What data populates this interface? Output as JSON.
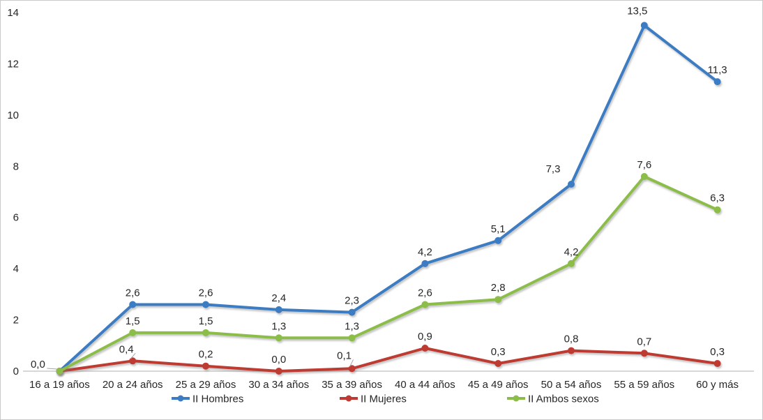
{
  "chart_data": {
    "type": "line",
    "title": "",
    "xlabel": "",
    "ylabel": "",
    "grid": false,
    "categories": [
      "16 a 19 años",
      "20 a 24 años",
      "25 a 29 años",
      "30 a 34 años",
      "35 a 39 años",
      "40 a 44 años",
      "45 a 49 años",
      "50 a 54 años",
      "55 a 59 años",
      "60 y más"
    ],
    "series": [
      {
        "name": "II Hombres",
        "color": "#3b7cc3",
        "values": [
          0.0,
          2.6,
          2.6,
          2.4,
          2.3,
          4.2,
          5.1,
          7.3,
          13.5,
          11.3
        ],
        "labels": [
          "0,0",
          "2,6",
          "2,6",
          "2,4",
          "2,3",
          "4,2",
          "5,1",
          "7,3",
          "13,5",
          "11,3"
        ]
      },
      {
        "name": "II Mujeres",
        "color": "#be3a33",
        "values": [
          0.0,
          0.4,
          0.2,
          0.0,
          0.1,
          0.9,
          0.3,
          0.8,
          0.7,
          0.3
        ],
        "labels": [
          "",
          "0,4",
          "0,2",
          "0,0",
          "0,1",
          "0,9",
          "0,3",
          "0,8",
          "0,7",
          "0,3"
        ]
      },
      {
        "name": "II Ambos sexos",
        "color": "#8cbd4a",
        "values": [
          0.0,
          1.5,
          1.5,
          1.3,
          1.3,
          2.6,
          2.8,
          4.2,
          7.6,
          6.3
        ],
        "labels": [
          "",
          "1,5",
          "1,5",
          "1,3",
          "1,3",
          "2,6",
          "2,8",
          "4,2",
          "7,6",
          "6,3"
        ]
      }
    ],
    "y_axis": {
      "min": 0,
      "max": 14,
      "step": 2,
      "ticks": [
        "0",
        "2",
        "4",
        "6",
        "8",
        "10",
        "12",
        "14"
      ]
    },
    "legend": {
      "position": "bottom",
      "items": [
        "II Hombres",
        "II Mujeres",
        "II Ambos sexos"
      ]
    },
    "label_offsets": {
      "0,0": [
        -31,
        -10
      ],
      "0,7": [
        -26,
        -22
      ],
      "0,8": [
        -10,
        -21
      ],
      "1,1": [
        -9,
        -17
      ],
      "1,4": [
        -11,
        -19
      ]
    },
    "callouts": [
      "0,0",
      "1,1",
      "1,4"
    ],
    "colors": {
      "text": "#262626",
      "axis_line": "#bfbfbf",
      "leader_line": "#a6a6a6",
      "background": "#ffffff",
      "border": "#c9c9c9"
    }
  }
}
